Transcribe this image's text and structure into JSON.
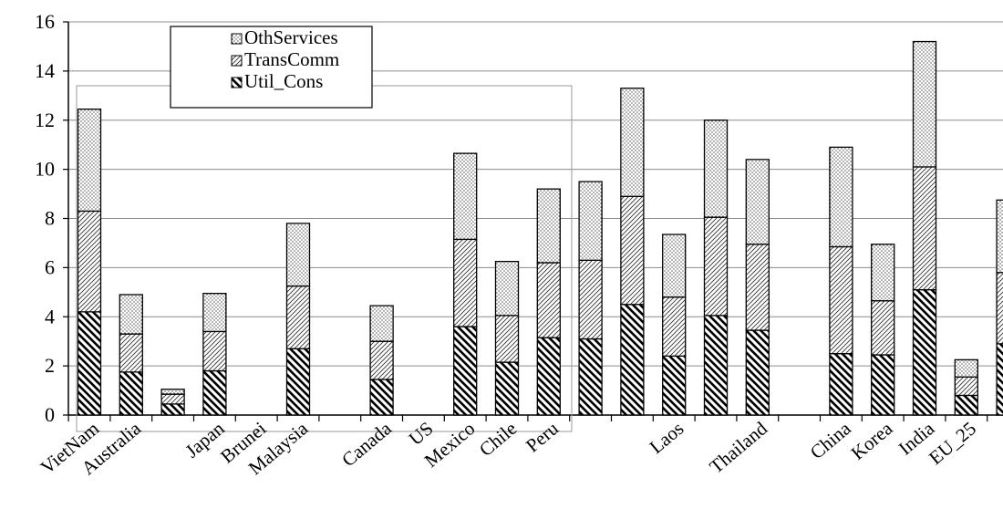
{
  "chart_data": {
    "type": "bar",
    "stacked": true,
    "grid": true,
    "legend_position": "top-left",
    "ylim": [
      0,
      16
    ],
    "yticks": [
      0,
      2,
      4,
      6,
      8,
      10,
      12,
      14,
      16
    ],
    "yticklabels": [
      "0",
      "2",
      "4",
      "6",
      "8",
      "10",
      "12",
      "14",
      "16"
    ],
    "categories": [
      "VietNam",
      "Australia",
      "",
      "Japan",
      "Brunei",
      "Malaysia",
      "",
      "Canada",
      "US",
      "Mexico",
      "Chile",
      "Peru",
      "",
      "",
      "Laos",
      "",
      "Thailand",
      "",
      "China",
      "Korea",
      "India",
      "EU_25",
      ""
    ],
    "series": [
      {
        "name": "Util_Cons",
        "pattern": "diagonal-thick",
        "values": [
          4.2,
          1.75,
          0.45,
          1.8,
          0,
          2.7,
          0,
          1.45,
          0,
          3.6,
          2.15,
          3.15,
          3.1,
          4.5,
          2.4,
          4.05,
          3.45,
          0,
          2.5,
          2.45,
          5.1,
          0.8,
          2.9
        ]
      },
      {
        "name": "TransComm",
        "pattern": "diagonal-thin",
        "values": [
          4.1,
          1.55,
          0.4,
          1.6,
          0,
          2.55,
          0,
          1.55,
          0,
          3.55,
          1.9,
          3.05,
          3.2,
          4.4,
          2.4,
          4.0,
          3.5,
          0,
          4.35,
          2.2,
          5.0,
          0.75,
          2.9
        ]
      },
      {
        "name": "OthServices",
        "pattern": "dotted",
        "values": [
          4.15,
          1.6,
          0.2,
          1.55,
          0,
          2.55,
          0,
          1.45,
          0,
          3.5,
          2.2,
          3.0,
          3.2,
          4.4,
          2.55,
          3.95,
          3.45,
          0,
          4.05,
          2.3,
          5.1,
          0.7,
          2.95
        ]
      }
    ]
  }
}
